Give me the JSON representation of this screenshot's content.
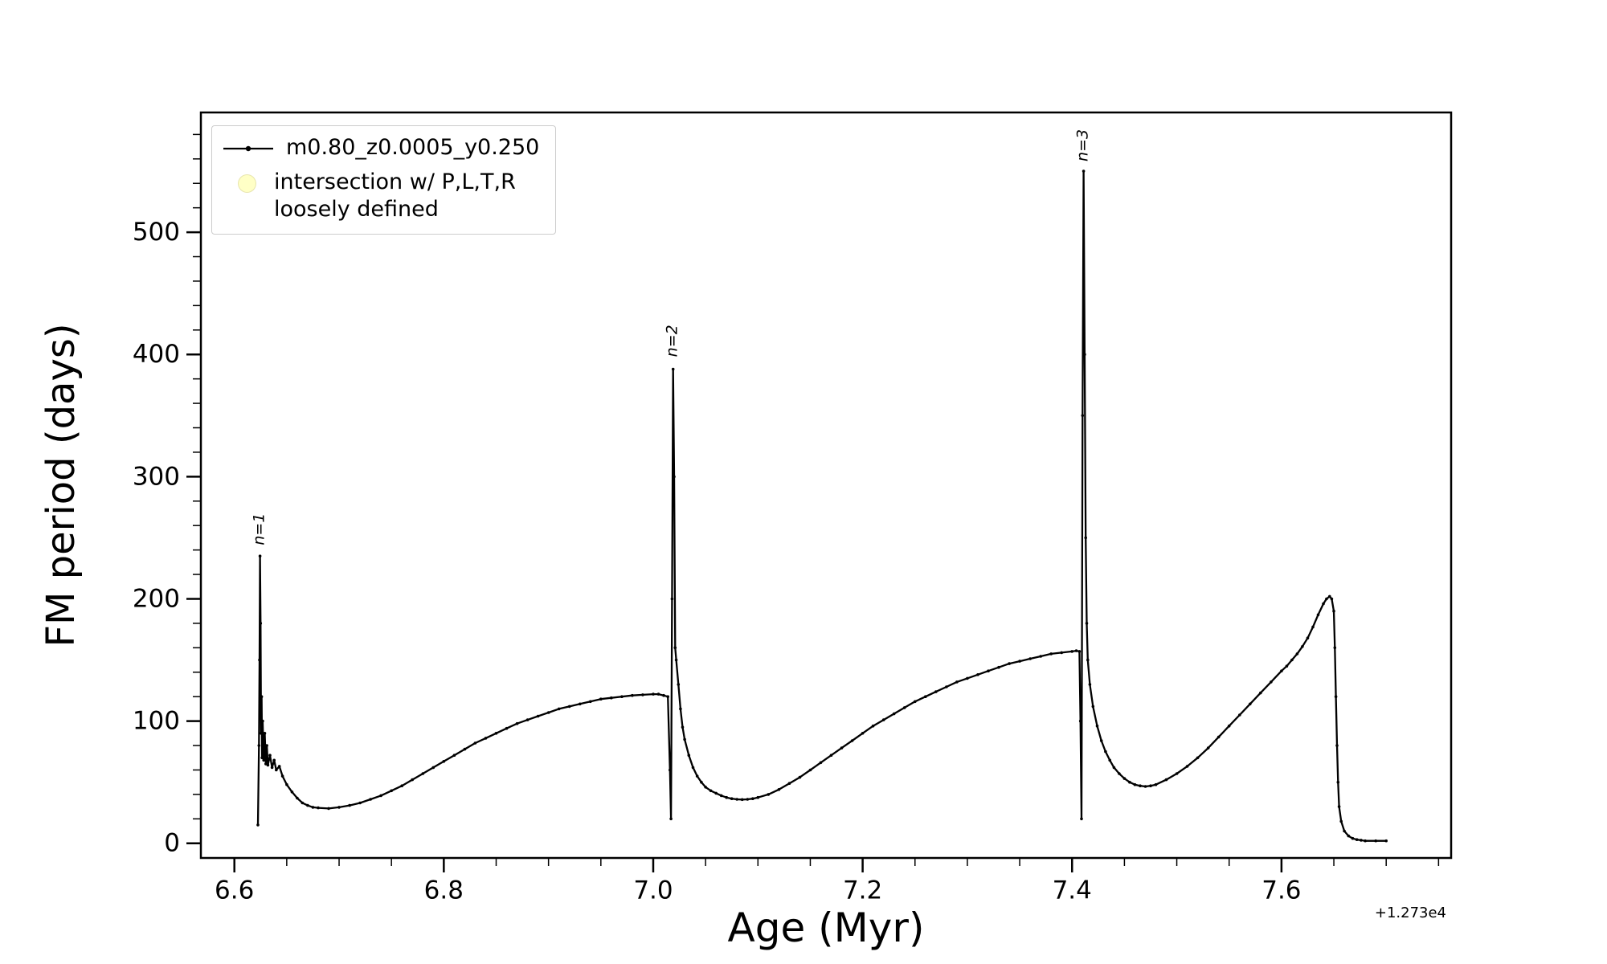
{
  "figure": {
    "background": "#ffffff",
    "axis_color": "#000000"
  },
  "chart_data": {
    "type": "line",
    "title": "",
    "xlabel": "Age (Myr)",
    "ylabel": "FM period (days)",
    "x_offset_text": "+1.273e4",
    "xlim": [
      6.568,
      7.762
    ],
    "ylim": [
      -12,
      598
    ],
    "x_ticks": [
      6.6,
      6.8,
      7.0,
      7.2,
      7.4,
      7.6
    ],
    "x_tick_labels": [
      "6.6",
      "6.8",
      "7.0",
      "7.2",
      "7.4",
      "7.6"
    ],
    "y_ticks": [
      0,
      100,
      200,
      300,
      400,
      500
    ],
    "y_tick_labels": [
      "0",
      "100",
      "200",
      "300",
      "400",
      "500"
    ],
    "x_minor_step": 0.05,
    "y_minor_step": 20,
    "grid": false,
    "legend": {
      "position": "upper left",
      "entries": [
        {
          "label": "m0.80_z0.0005_y0.250",
          "type": "line",
          "color": "#000000"
        },
        {
          "label": "intersection w/ P,L,T,R\nloosely defined",
          "type": "marker",
          "color": "#ffffa8"
        }
      ]
    },
    "annotations": [
      {
        "text": "n=1",
        "x": 6.6245,
        "y": 240,
        "rotation": -90
      },
      {
        "text": "n=2",
        "x": 7.019,
        "y": 394,
        "rotation": -90
      },
      {
        "text": "n=3",
        "x": 7.411,
        "y": 554,
        "rotation": -90
      }
    ],
    "series": [
      {
        "name": "m0.80_z0.0005_y0.250",
        "color": "#000000",
        "points": [
          [
            6.6225,
            15
          ],
          [
            6.6235,
            80
          ],
          [
            6.624,
            150
          ],
          [
            6.6245,
            235
          ],
          [
            6.625,
            180
          ],
          [
            6.6255,
            90
          ],
          [
            6.626,
            120
          ],
          [
            6.6265,
            70
          ],
          [
            6.627,
            100
          ],
          [
            6.628,
            68
          ],
          [
            6.629,
            90
          ],
          [
            6.63,
            65
          ],
          [
            6.631,
            80
          ],
          [
            6.632,
            64
          ],
          [
            6.634,
            72
          ],
          [
            6.636,
            62
          ],
          [
            6.638,
            68
          ],
          [
            6.64,
            60
          ],
          [
            6.643,
            63
          ],
          [
            6.646,
            55
          ],
          [
            6.65,
            48
          ],
          [
            6.655,
            42
          ],
          [
            6.66,
            37
          ],
          [
            6.665,
            33
          ],
          [
            6.67,
            31
          ],
          [
            6.675,
            29.5
          ],
          [
            6.68,
            29
          ],
          [
            6.69,
            28.5
          ],
          [
            6.7,
            29.5
          ],
          [
            6.71,
            31
          ],
          [
            6.72,
            33
          ],
          [
            6.73,
            36
          ],
          [
            6.74,
            39
          ],
          [
            6.75,
            43
          ],
          [
            6.76,
            47
          ],
          [
            6.77,
            52
          ],
          [
            6.78,
            57
          ],
          [
            6.79,
            62
          ],
          [
            6.8,
            67
          ],
          [
            6.81,
            72
          ],
          [
            6.82,
            77
          ],
          [
            6.83,
            82
          ],
          [
            6.84,
            86
          ],
          [
            6.85,
            90
          ],
          [
            6.86,
            94
          ],
          [
            6.87,
            98
          ],
          [
            6.88,
            101
          ],
          [
            6.89,
            104
          ],
          [
            6.9,
            107
          ],
          [
            6.91,
            110
          ],
          [
            6.92,
            112
          ],
          [
            6.93,
            114
          ],
          [
            6.94,
            116
          ],
          [
            6.95,
            118
          ],
          [
            6.96,
            119
          ],
          [
            6.97,
            120
          ],
          [
            6.98,
            121
          ],
          [
            6.99,
            121.5
          ],
          [
            7.0,
            122
          ],
          [
            7.005,
            122
          ],
          [
            7.01,
            121
          ],
          [
            7.014,
            120
          ],
          [
            7.016,
            60
          ],
          [
            7.017,
            20
          ],
          [
            7.018,
            200
          ],
          [
            7.019,
            388
          ],
          [
            7.02,
            300
          ],
          [
            7.021,
            160
          ],
          [
            7.022,
            150
          ],
          [
            7.024,
            130
          ],
          [
            7.026,
            110
          ],
          [
            7.028,
            95
          ],
          [
            7.03,
            85
          ],
          [
            7.034,
            72
          ],
          [
            7.038,
            62
          ],
          [
            7.042,
            55
          ],
          [
            7.046,
            50
          ],
          [
            7.05,
            46
          ],
          [
            7.055,
            43
          ],
          [
            7.06,
            41
          ],
          [
            7.065,
            39
          ],
          [
            7.07,
            37.5
          ],
          [
            7.075,
            36.5
          ],
          [
            7.08,
            36
          ],
          [
            7.085,
            35.8
          ],
          [
            7.09,
            36
          ],
          [
            7.095,
            36.5
          ],
          [
            7.1,
            37.5
          ],
          [
            7.11,
            40
          ],
          [
            7.12,
            44
          ],
          [
            7.13,
            49
          ],
          [
            7.14,
            54
          ],
          [
            7.15,
            60
          ],
          [
            7.16,
            66
          ],
          [
            7.17,
            72
          ],
          [
            7.18,
            78
          ],
          [
            7.19,
            84
          ],
          [
            7.2,
            90
          ],
          [
            7.21,
            96
          ],
          [
            7.22,
            101
          ],
          [
            7.23,
            106
          ],
          [
            7.24,
            111
          ],
          [
            7.25,
            116
          ],
          [
            7.26,
            120
          ],
          [
            7.27,
            124
          ],
          [
            7.28,
            128
          ],
          [
            7.29,
            132
          ],
          [
            7.3,
            135
          ],
          [
            7.31,
            138
          ],
          [
            7.32,
            141
          ],
          [
            7.33,
            144
          ],
          [
            7.34,
            147
          ],
          [
            7.35,
            149
          ],
          [
            7.36,
            151
          ],
          [
            7.37,
            153
          ],
          [
            7.38,
            155
          ],
          [
            7.39,
            156
          ],
          [
            7.4,
            157
          ],
          [
            7.404,
            157.5
          ],
          [
            7.407,
            157
          ],
          [
            7.408,
            100
          ],
          [
            7.409,
            20
          ],
          [
            7.41,
            350
          ],
          [
            7.411,
            550
          ],
          [
            7.412,
            400
          ],
          [
            7.413,
            250
          ],
          [
            7.414,
            180
          ],
          [
            7.415,
            150
          ],
          [
            7.417,
            130
          ],
          [
            7.42,
            112
          ],
          [
            7.424,
            96
          ],
          [
            7.428,
            84
          ],
          [
            7.432,
            75
          ],
          [
            7.436,
            68
          ],
          [
            7.44,
            62
          ],
          [
            7.445,
            57
          ],
          [
            7.45,
            53
          ],
          [
            7.455,
            50
          ],
          [
            7.46,
            48
          ],
          [
            7.465,
            47
          ],
          [
            7.47,
            46.5
          ],
          [
            7.475,
            47
          ],
          [
            7.48,
            48
          ],
          [
            7.49,
            52
          ],
          [
            7.5,
            57
          ],
          [
            7.51,
            63
          ],
          [
            7.52,
            70
          ],
          [
            7.53,
            78
          ],
          [
            7.54,
            87
          ],
          [
            7.55,
            96
          ],
          [
            7.56,
            105
          ],
          [
            7.57,
            114
          ],
          [
            7.58,
            123
          ],
          [
            7.59,
            132
          ],
          [
            7.6,
            141
          ],
          [
            7.605,
            145
          ],
          [
            7.61,
            150
          ],
          [
            7.615,
            155
          ],
          [
            7.62,
            161
          ],
          [
            7.625,
            168
          ],
          [
            7.63,
            177
          ],
          [
            7.635,
            187
          ],
          [
            7.64,
            196
          ],
          [
            7.643,
            200
          ],
          [
            7.646,
            202
          ],
          [
            7.648,
            200
          ],
          [
            7.65,
            190
          ],
          [
            7.651,
            160
          ],
          [
            7.652,
            120
          ],
          [
            7.653,
            80
          ],
          [
            7.654,
            50
          ],
          [
            7.655,
            30
          ],
          [
            7.657,
            18
          ],
          [
            7.66,
            10
          ],
          [
            7.664,
            6
          ],
          [
            7.668,
            4
          ],
          [
            7.672,
            3
          ],
          [
            7.676,
            2.5
          ],
          [
            7.68,
            2
          ],
          [
            7.69,
            2
          ],
          [
            7.7,
            2
          ]
        ]
      }
    ]
  }
}
